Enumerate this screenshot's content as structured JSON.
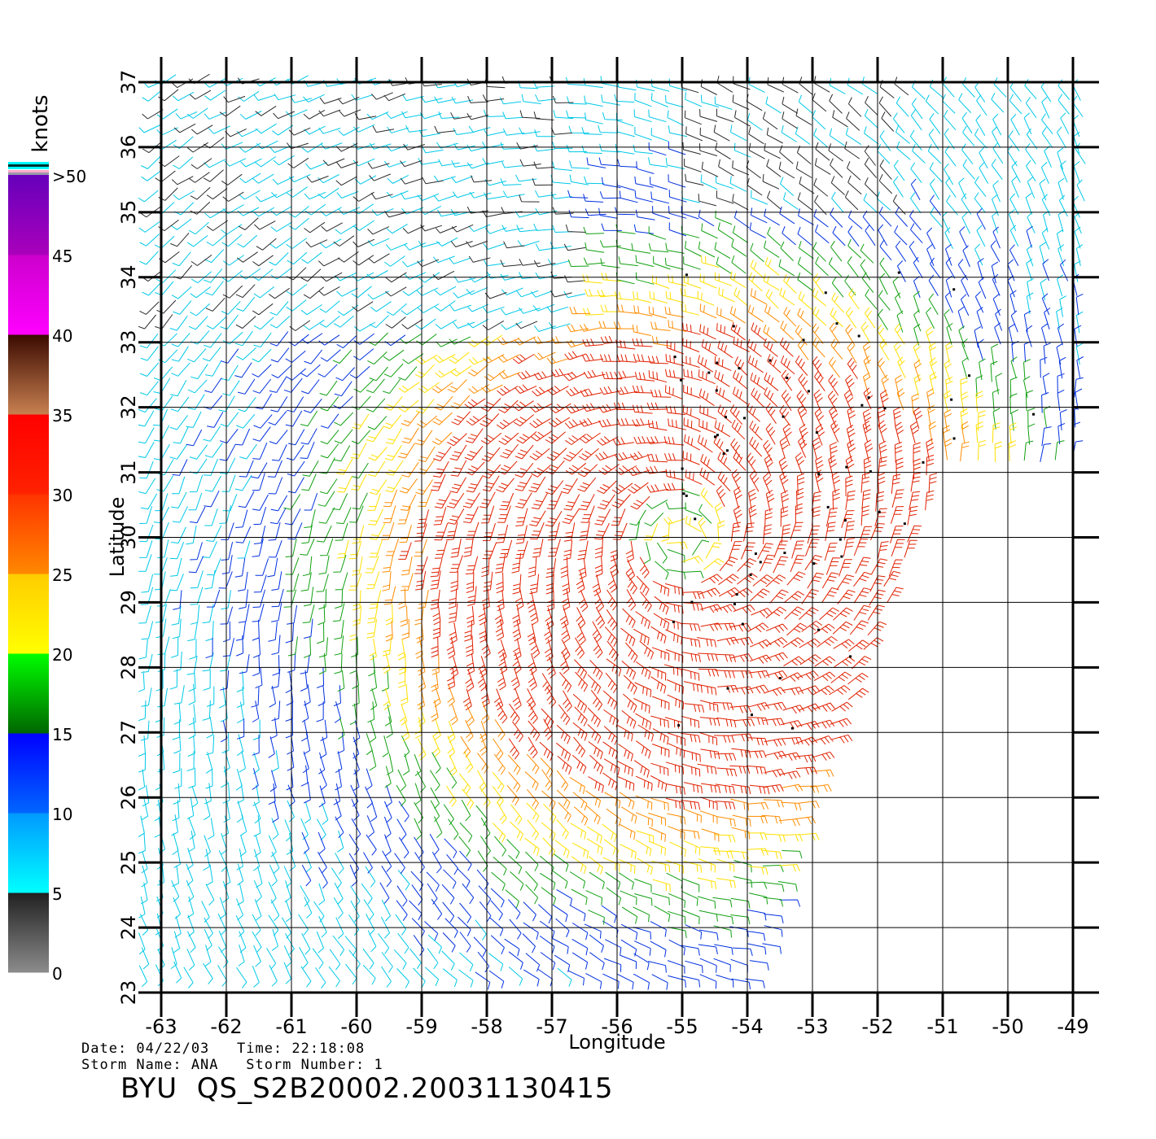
{
  "map": {
    "lon_range": [
      -63,
      -49
    ],
    "lat_range": [
      23,
      37
    ],
    "lon_ticks": [
      "-63",
      "-62",
      "-61",
      "-60",
      "-59",
      "-58",
      "-57",
      "-56",
      "-55",
      "-54",
      "-53",
      "-52",
      "-51",
      "-50",
      "-49"
    ],
    "lat_ticks": [
      "23",
      "24",
      "25",
      "26",
      "27",
      "28",
      "29",
      "30",
      "31",
      "32",
      "33",
      "34",
      "35",
      "36",
      "37"
    ],
    "xlabel": "Longitude",
    "ylabel": "Latitude",
    "grid": true,
    "storm_center": {
      "lon": -55.0,
      "lat": 30.0
    },
    "field": "surface wind barbs (cyclonic circulation, strongest winds east/southeast of center)"
  },
  "colorbar": {
    "unit": "knots",
    "tick_labels": [
      "0",
      "5",
      "10",
      "15",
      "20",
      "25",
      "30",
      "35",
      "40",
      "45",
      ">50"
    ],
    "bands": [
      {
        "range": [
          0,
          5
        ],
        "colors": [
          "#8c8c8c",
          "#202020"
        ]
      },
      {
        "range": [
          5,
          10
        ],
        "colors": [
          "#00ffff",
          "#0099ff"
        ]
      },
      {
        "range": [
          10,
          15
        ],
        "colors": [
          "#0066ff",
          "#0000ff"
        ]
      },
      {
        "range": [
          15,
          20
        ],
        "colors": [
          "#006600",
          "#00ff00"
        ]
      },
      {
        "range": [
          20,
          25
        ],
        "colors": [
          "#ffff00",
          "#ffcc00"
        ]
      },
      {
        "range": [
          25,
          30
        ],
        "colors": [
          "#ff8800",
          "#ff3300"
        ]
      },
      {
        "range": [
          30,
          35
        ],
        "colors": [
          "#ff2200",
          "#ff0000"
        ]
      },
      {
        "range": [
          35,
          40
        ],
        "colors": [
          "#c88050",
          "#3a0a00"
        ]
      },
      {
        "range": [
          40,
          45
        ],
        "colors": [
          "#ff00ff",
          "#cc00cc"
        ]
      },
      {
        "range": [
          45,
          50
        ],
        "colors": [
          "#aa00bb",
          "#6600bb"
        ]
      }
    ]
  },
  "footer": {
    "date_line": "Date: 04/22/03   Time: 22:18:08",
    "storm_line": "Storm Name: ANA   Storm Number: 1",
    "title": "BYU  QS_S2B20002.20031130415"
  }
}
